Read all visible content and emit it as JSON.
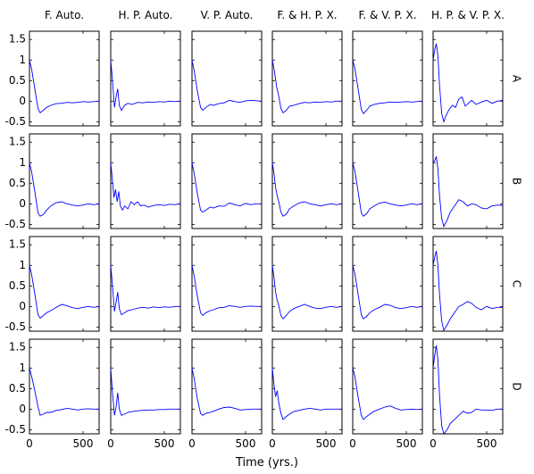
{
  "chart_data": {
    "type": "line",
    "columns": [
      "F. Auto.",
      "H. P. Auto.",
      "V. P. Auto.",
      "F. & H. P. X.",
      "F. & V. P. X.",
      "H. P. & V. P. X."
    ],
    "rows": [
      "A",
      "B",
      "C",
      "D"
    ],
    "xlabel": "Time (yrs.)",
    "xlim": [
      0,
      650
    ],
    "ylim": [
      -0.6,
      1.7
    ],
    "xticks": [
      0,
      500
    ],
    "yticks": [
      -0.5,
      0,
      0.5,
      1,
      1.5
    ],
    "grid": false,
    "line_color": "#0000ff",
    "panels": [
      {
        "row": "A",
        "column": "F. Auto.",
        "x": [
          0,
          20,
          50,
          80,
          100,
          130,
          160,
          200,
          250,
          300,
          350,
          400,
          450,
          500,
          550,
          600,
          650
        ],
        "y": [
          1.0,
          0.78,
          0.3,
          -0.18,
          -0.28,
          -0.22,
          -0.15,
          -0.1,
          -0.06,
          -0.05,
          -0.03,
          -0.04,
          -0.03,
          -0.01,
          -0.02,
          -0.01,
          0.0
        ]
      },
      {
        "row": "A",
        "column": "H. P. Auto.",
        "x": [
          0,
          15,
          35,
          50,
          65,
          80,
          100,
          130,
          160,
          200,
          250,
          300,
          350,
          400,
          450,
          500,
          550,
          600,
          650
        ],
        "y": [
          1.0,
          0.55,
          -0.15,
          0.1,
          0.3,
          -0.1,
          -0.22,
          -0.1,
          -0.05,
          -0.08,
          -0.03,
          -0.04,
          -0.02,
          -0.03,
          -0.01,
          -0.02,
          0.0,
          -0.01,
          0.0
        ]
      },
      {
        "row": "A",
        "column": "V. P. Auto.",
        "x": [
          0,
          20,
          50,
          80,
          100,
          130,
          170,
          200,
          250,
          300,
          350,
          400,
          450,
          500,
          550,
          600,
          650
        ],
        "y": [
          1.0,
          0.75,
          0.25,
          -0.15,
          -0.22,
          -0.15,
          -0.08,
          -0.1,
          -0.06,
          -0.04,
          0.02,
          -0.01,
          -0.03,
          0.01,
          0.02,
          0.01,
          0.0
        ]
      },
      {
        "row": "A",
        "column": "F. & H. P. X.",
        "x": [
          0,
          20,
          40,
          60,
          80,
          100,
          130,
          160,
          200,
          250,
          300,
          350,
          400,
          450,
          500,
          550,
          600,
          650
        ],
        "y": [
          1.0,
          0.72,
          0.35,
          0.12,
          -0.18,
          -0.28,
          -0.22,
          -0.12,
          -0.1,
          -0.06,
          -0.03,
          -0.04,
          -0.02,
          -0.03,
          -0.01,
          -0.02,
          0.0,
          0.0
        ]
      },
      {
        "row": "A",
        "column": "F. & V. P. X.",
        "x": [
          0,
          20,
          50,
          80,
          100,
          130,
          160,
          200,
          250,
          300,
          350,
          400,
          450,
          500,
          550,
          600,
          650
        ],
        "y": [
          1.0,
          0.8,
          0.3,
          -0.2,
          -0.3,
          -0.22,
          -0.12,
          -0.08,
          -0.05,
          -0.04,
          -0.02,
          -0.03,
          -0.02,
          -0.01,
          -0.02,
          -0.01,
          0.0
        ]
      },
      {
        "row": "A",
        "column": "H. P. & V. P. X.",
        "x": [
          0,
          15,
          30,
          45,
          60,
          80,
          100,
          120,
          150,
          180,
          210,
          240,
          270,
          300,
          330,
          360,
          400,
          450,
          500,
          550,
          600,
          650
        ],
        "y": [
          1.0,
          1.25,
          1.4,
          1.1,
          0.4,
          -0.3,
          -0.5,
          -0.35,
          -0.2,
          -0.1,
          -0.15,
          0.05,
          0.1,
          -0.12,
          -0.05,
          0.02,
          -0.08,
          -0.02,
          0.02,
          -0.05,
          0.0,
          0.02
        ]
      },
      {
        "row": "B",
        "column": "F. Auto.",
        "x": [
          0,
          20,
          50,
          80,
          100,
          130,
          160,
          200,
          250,
          300,
          350,
          400,
          450,
          500,
          550,
          600,
          650
        ],
        "y": [
          1.0,
          0.78,
          0.3,
          -0.22,
          -0.3,
          -0.26,
          -0.15,
          -0.05,
          0.03,
          0.05,
          0.0,
          -0.03,
          -0.05,
          -0.03,
          0.0,
          -0.02,
          0.0
        ]
      },
      {
        "row": "B",
        "column": "H. P. Auto.",
        "x": [
          0,
          15,
          30,
          45,
          60,
          75,
          90,
          110,
          130,
          160,
          190,
          220,
          250,
          280,
          310,
          350,
          400,
          450,
          500,
          550,
          600,
          650
        ],
        "y": [
          1.0,
          0.6,
          0.15,
          0.35,
          0.05,
          0.3,
          -0.05,
          -0.15,
          -0.05,
          -0.12,
          0.05,
          -0.02,
          0.05,
          -0.05,
          -0.03,
          -0.08,
          -0.04,
          -0.02,
          -0.04,
          -0.01,
          -0.02,
          0.0
        ]
      },
      {
        "row": "B",
        "column": "V. P. Auto.",
        "x": [
          0,
          20,
          50,
          80,
          100,
          130,
          170,
          200,
          250,
          300,
          350,
          400,
          450,
          500,
          550,
          600,
          650
        ],
        "y": [
          1.0,
          0.75,
          0.25,
          -0.15,
          -0.2,
          -0.15,
          -0.08,
          -0.1,
          -0.05,
          -0.06,
          0.02,
          -0.02,
          -0.05,
          0.01,
          -0.02,
          0.0,
          0.0
        ]
      },
      {
        "row": "B",
        "column": "F. & H. P. X.",
        "x": [
          0,
          15,
          30,
          45,
          60,
          80,
          100,
          130,
          160,
          200,
          250,
          300,
          350,
          400,
          450,
          500,
          550,
          600,
          650
        ],
        "y": [
          1.0,
          0.75,
          0.4,
          0.2,
          0.05,
          -0.2,
          -0.3,
          -0.25,
          -0.12,
          -0.05,
          0.02,
          0.05,
          0.0,
          -0.02,
          -0.05,
          -0.02,
          0.0,
          -0.02,
          0.0
        ]
      },
      {
        "row": "B",
        "column": "F. & V. P. X.",
        "x": [
          0,
          20,
          50,
          80,
          100,
          130,
          160,
          200,
          250,
          300,
          350,
          400,
          450,
          500,
          550,
          600,
          650
        ],
        "y": [
          1.0,
          0.8,
          0.3,
          -0.22,
          -0.3,
          -0.24,
          -0.12,
          -0.05,
          0.02,
          0.04,
          0.0,
          -0.03,
          -0.05,
          -0.03,
          0.0,
          -0.02,
          0.0
        ]
      },
      {
        "row": "B",
        "column": "H. P. & V. P. X.",
        "x": [
          0,
          15,
          30,
          45,
          60,
          80,
          100,
          130,
          160,
          200,
          240,
          280,
          320,
          360,
          400,
          450,
          500,
          550,
          600,
          650
        ],
        "y": [
          1.0,
          1.05,
          1.15,
          0.85,
          0.2,
          -0.35,
          -0.55,
          -0.4,
          -0.2,
          -0.05,
          0.1,
          0.05,
          -0.05,
          0.0,
          -0.02,
          -0.1,
          -0.12,
          -0.05,
          -0.03,
          -0.04
        ]
      },
      {
        "row": "C",
        "column": "F. Auto.",
        "x": [
          0,
          20,
          50,
          80,
          100,
          130,
          160,
          200,
          250,
          300,
          350,
          400,
          450,
          500,
          550,
          600,
          650
        ],
        "y": [
          1.0,
          0.78,
          0.3,
          -0.2,
          -0.28,
          -0.22,
          -0.15,
          -0.1,
          -0.02,
          0.05,
          0.02,
          -0.03,
          -0.05,
          -0.02,
          0.0,
          -0.02,
          0.0
        ]
      },
      {
        "row": "C",
        "column": "H. P. Auto.",
        "x": [
          0,
          15,
          35,
          50,
          65,
          80,
          100,
          130,
          160,
          200,
          250,
          300,
          350,
          400,
          450,
          500,
          550,
          600,
          650
        ],
        "y": [
          1.0,
          0.55,
          -0.12,
          0.1,
          0.35,
          -0.05,
          -0.2,
          -0.15,
          -0.1,
          -0.08,
          -0.04,
          -0.02,
          -0.04,
          -0.01,
          -0.03,
          -0.01,
          -0.02,
          0.0,
          0.0
        ]
      },
      {
        "row": "C",
        "column": "V. P. Auto.",
        "x": [
          0,
          20,
          50,
          80,
          100,
          130,
          170,
          200,
          250,
          300,
          350,
          400,
          450,
          500,
          550,
          600,
          650
        ],
        "y": [
          1.0,
          0.75,
          0.25,
          -0.15,
          -0.22,
          -0.15,
          -0.1,
          -0.08,
          -0.03,
          -0.02,
          0.02,
          0.0,
          -0.02,
          0.0,
          0.01,
          0.0,
          0.0
        ]
      },
      {
        "row": "C",
        "column": "F. & H. P. X.",
        "x": [
          0,
          15,
          30,
          45,
          60,
          80,
          100,
          130,
          160,
          200,
          250,
          300,
          350,
          400,
          450,
          500,
          550,
          600,
          650
        ],
        "y": [
          1.0,
          0.72,
          0.35,
          0.15,
          0.02,
          -0.22,
          -0.3,
          -0.22,
          -0.12,
          -0.05,
          0.0,
          0.05,
          0.0,
          -0.04,
          -0.05,
          -0.02,
          0.0,
          -0.02,
          0.0
        ]
      },
      {
        "row": "C",
        "column": "F. & V. P. X.",
        "x": [
          0,
          20,
          50,
          80,
          100,
          130,
          160,
          200,
          250,
          300,
          350,
          400,
          450,
          500,
          550,
          600,
          650
        ],
        "y": [
          1.0,
          0.8,
          0.3,
          -0.2,
          -0.3,
          -0.24,
          -0.15,
          -0.08,
          -0.02,
          0.05,
          0.03,
          -0.03,
          -0.05,
          -0.03,
          0.0,
          -0.02,
          0.0
        ]
      },
      {
        "row": "C",
        "column": "H. P. & V. P. X.",
        "x": [
          0,
          15,
          30,
          45,
          60,
          80,
          100,
          130,
          160,
          200,
          240,
          280,
          320,
          360,
          400,
          450,
          500,
          550,
          600,
          650
        ],
        "y": [
          1.0,
          1.2,
          1.35,
          1.0,
          0.3,
          -0.35,
          -0.58,
          -0.45,
          -0.3,
          -0.15,
          0.0,
          0.05,
          0.12,
          0.08,
          -0.02,
          -0.08,
          0.0,
          -0.05,
          -0.02,
          -0.02
        ]
      },
      {
        "row": "D",
        "column": "F. Auto.",
        "x": [
          0,
          20,
          50,
          80,
          100,
          130,
          160,
          200,
          250,
          300,
          350,
          400,
          450,
          500,
          550,
          600,
          650
        ],
        "y": [
          1.0,
          0.8,
          0.45,
          0.05,
          -0.15,
          -0.12,
          -0.08,
          -0.08,
          -0.03,
          -0.01,
          0.02,
          0.0,
          -0.02,
          0.0,
          0.01,
          0.0,
          0.0
        ]
      },
      {
        "row": "D",
        "column": "H. P. Auto.",
        "x": [
          0,
          15,
          35,
          50,
          65,
          80,
          100,
          130,
          160,
          200,
          250,
          300,
          350,
          400,
          450,
          500,
          550,
          600,
          650
        ],
        "y": [
          1.0,
          0.45,
          -0.15,
          0.05,
          0.4,
          0.0,
          -0.15,
          -0.12,
          -0.08,
          -0.06,
          -0.04,
          -0.03,
          -0.02,
          -0.02,
          -0.01,
          -0.01,
          0.0,
          0.0,
          0.0
        ]
      },
      {
        "row": "D",
        "column": "V. P. Auto.",
        "x": [
          0,
          20,
          50,
          80,
          100,
          130,
          170,
          200,
          250,
          300,
          350,
          400,
          450,
          500,
          550,
          600,
          650
        ],
        "y": [
          1.0,
          0.75,
          0.25,
          -0.1,
          -0.15,
          -0.1,
          -0.08,
          -0.05,
          0.0,
          0.04,
          0.05,
          0.02,
          -0.02,
          -0.01,
          0.0,
          0.0,
          0.0
        ]
      },
      {
        "row": "D",
        "column": "F. & H. P. X.",
        "x": [
          0,
          15,
          30,
          45,
          60,
          80,
          100,
          130,
          160,
          200,
          250,
          300,
          350,
          400,
          450,
          500,
          550,
          600,
          650
        ],
        "y": [
          1.0,
          0.6,
          0.3,
          0.45,
          0.15,
          -0.1,
          -0.25,
          -0.18,
          -0.12,
          -0.06,
          -0.03,
          0.0,
          0.02,
          0.0,
          -0.02,
          0.0,
          0.0,
          0.0,
          0.0
        ]
      },
      {
        "row": "D",
        "column": "F. & V. P. X.",
        "x": [
          0,
          20,
          50,
          80,
          100,
          130,
          160,
          200,
          250,
          300,
          350,
          400,
          450,
          500,
          550,
          600,
          650
        ],
        "y": [
          1.0,
          0.8,
          0.3,
          -0.15,
          -0.25,
          -0.18,
          -0.12,
          -0.05,
          0.0,
          0.05,
          0.08,
          0.02,
          -0.02,
          -0.01,
          0.0,
          -0.01,
          0.0
        ]
      },
      {
        "row": "D",
        "column": "H. P. & V. P. X.",
        "x": [
          0,
          15,
          30,
          45,
          60,
          80,
          100,
          130,
          160,
          200,
          240,
          280,
          320,
          360,
          400,
          450,
          500,
          550,
          600,
          650
        ],
        "y": [
          1.0,
          1.3,
          1.55,
          1.2,
          0.35,
          -0.4,
          -0.6,
          -0.5,
          -0.35,
          -0.25,
          -0.15,
          -0.05,
          -0.1,
          -0.08,
          0.0,
          -0.02,
          -0.02,
          -0.03,
          0.0,
          0.0
        ]
      }
    ]
  }
}
